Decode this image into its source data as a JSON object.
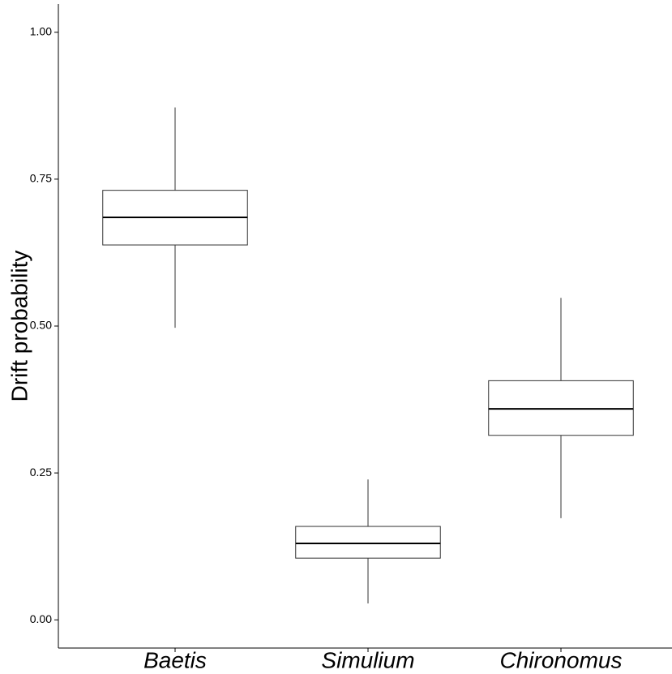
{
  "chart_data": {
    "type": "box",
    "y_label": "Drift probability",
    "categories": [
      "Baetis",
      "Simulium",
      "Chironomus"
    ],
    "min": [
      0.497,
      0.028,
      0.173
    ],
    "q1": [
      0.638,
      0.105,
      0.314
    ],
    "median": [
      0.685,
      0.13,
      0.359
    ],
    "q3": [
      0.731,
      0.159,
      0.407
    ],
    "max": [
      0.872,
      0.239,
      0.548
    ],
    "color": "#ffffff",
    "ylim": [
      -0.048,
      1.048
    ],
    "yticks": [
      {
        "value": 0,
        "label": "0.00"
      },
      {
        "value": 0.25,
        "label": "0.25"
      },
      {
        "value": 0.5,
        "label": "0.50"
      },
      {
        "value": 0.75,
        "label": "0.75"
      },
      {
        "value": 1,
        "label": "1.00"
      }
    ],
    "grid": false
  }
}
